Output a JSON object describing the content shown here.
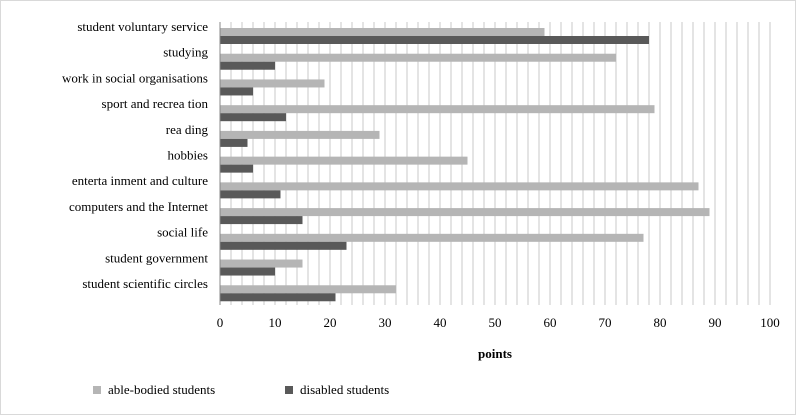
{
  "chart_data": {
    "type": "bar",
    "orientation": "horizontal",
    "title": "",
    "xlabel": "points",
    "ylabel": "",
    "xlim": [
      0,
      100
    ],
    "xticks": [
      0,
      10,
      20,
      30,
      40,
      50,
      60,
      70,
      80,
      90,
      100
    ],
    "grid": "vertical lines every 2 points",
    "legend_position": "bottom",
    "categories": [
      "student voluntary service",
      "studying",
      "work in social organisations",
      "sport and recrea tion",
      "rea ding",
      "hobbies",
      "enterta inment and culture",
      "computers and the Internet",
      "social life",
      "student government",
      "student scientific circles"
    ],
    "series": [
      {
        "name": "able-bodied students",
        "color": "#b5b5b5",
        "values": [
          59,
          72,
          19,
          79,
          29,
          45,
          87,
          89,
          77,
          15,
          32
        ]
      },
      {
        "name": "disabled students",
        "color": "#595959",
        "values": [
          78,
          10,
          6,
          12,
          5,
          6,
          11,
          15,
          23,
          10,
          21
        ]
      }
    ]
  }
}
